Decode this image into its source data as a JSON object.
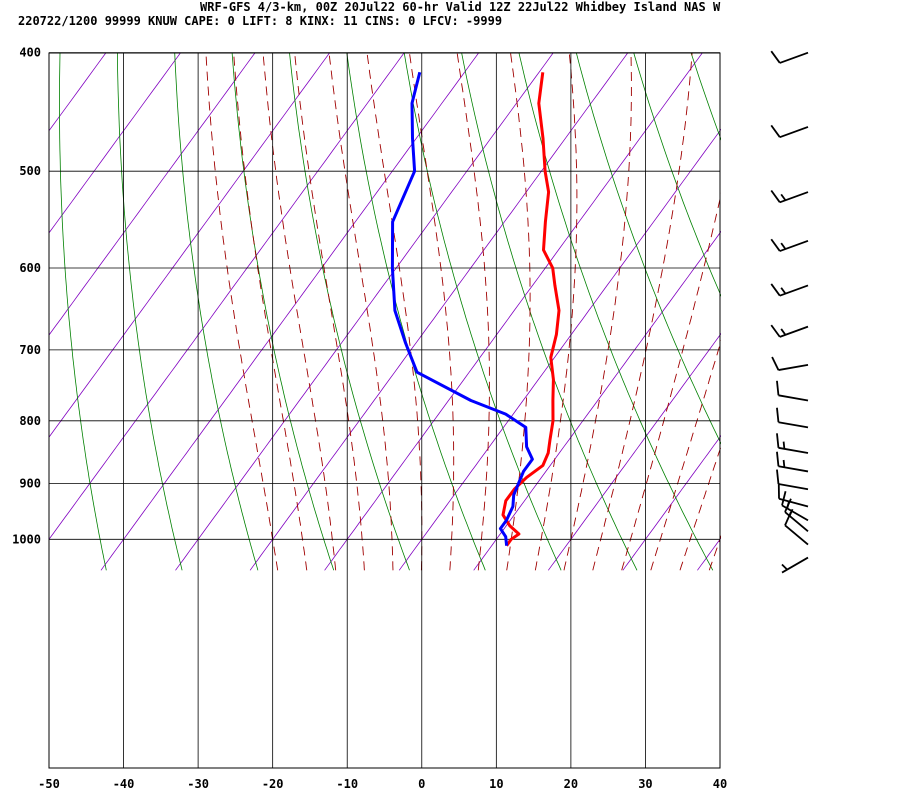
{
  "header": {
    "line1": "WRF-GFS 4/3-km, 00Z 20Jul22 60-hr Valid 12Z 22Jul22 Whidbey Island NAS W",
    "line2": "220722/1200 99999  KNUW    CAPE:     0 LIFT:     8 KINX:    11 CINS:     0 LFCV: -9999"
  },
  "colors": {
    "temperature": "#ff0000",
    "dewpoint": "#0000ff",
    "dry_adiabat": "#008000",
    "moist_adiabat": "#a00000",
    "isotherm": "#8000c0",
    "grid": "#000000",
    "wind_barb": "#000000"
  },
  "chart_data": {
    "type": "line",
    "chart_kind": "skew-T log-p sounding",
    "xlim": [
      -50,
      40
    ],
    "ylim": [
      1040,
      400
    ],
    "y_scale": "log",
    "x_ticks": [
      -50,
      -40,
      -30,
      -20,
      -10,
      0,
      10,
      20,
      30,
      40
    ],
    "y_ticks": [
      400,
      500,
      600,
      700,
      800,
      900,
      1000
    ],
    "grid": true,
    "series": [
      {
        "key": "temperature",
        "points": [
          [
            1012,
            12
          ],
          [
            1000,
            12
          ],
          [
            990,
            12.5
          ],
          [
            975,
            10.5
          ],
          [
            955,
            8.5
          ],
          [
            930,
            7.5
          ],
          [
            910,
            7.5
          ],
          [
            890,
            8
          ],
          [
            870,
            9
          ],
          [
            850,
            8.5
          ],
          [
            830,
            7.5
          ],
          [
            800,
            6
          ],
          [
            770,
            4
          ],
          [
            740,
            2
          ],
          [
            710,
            -0.5
          ],
          [
            680,
            -2
          ],
          [
            650,
            -4
          ],
          [
            620,
            -7
          ],
          [
            600,
            -9
          ],
          [
            580,
            -12
          ],
          [
            550,
            -14.5
          ],
          [
            520,
            -17
          ],
          [
            500,
            -19.5
          ],
          [
            470,
            -23
          ],
          [
            440,
            -27
          ],
          [
            415,
            -29.5
          ]
        ]
      },
      {
        "key": "dewpoint",
        "points": [
          [
            1012,
            12
          ],
          [
            995,
            11
          ],
          [
            980,
            9.5
          ],
          [
            965,
            9.5
          ],
          [
            940,
            9
          ],
          [
            920,
            8
          ],
          [
            900,
            7.5
          ],
          [
            880,
            7
          ],
          [
            860,
            7
          ],
          [
            840,
            5
          ],
          [
            810,
            3
          ],
          [
            790,
            -1
          ],
          [
            770,
            -7
          ],
          [
            730,
            -17
          ],
          [
            690,
            -21.5
          ],
          [
            650,
            -26
          ],
          [
            600,
            -30.5
          ],
          [
            550,
            -35
          ],
          [
            500,
            -37
          ],
          [
            470,
            -40.5
          ],
          [
            440,
            -44
          ],
          [
            415,
            -46
          ]
        ]
      }
    ],
    "wind_barbs": [
      {
        "p": 400,
        "dir": 250,
        "kt": 10
      },
      {
        "p": 460,
        "dir": 250,
        "kt": 10
      },
      {
        "p": 520,
        "dir": 250,
        "kt": 15
      },
      {
        "p": 570,
        "dir": 250,
        "kt": 15
      },
      {
        "p": 620,
        "dir": 250,
        "kt": 15
      },
      {
        "p": 670,
        "dir": 250,
        "kt": 15
      },
      {
        "p": 720,
        "dir": 260,
        "kt": 10
      },
      {
        "p": 770,
        "dir": 280,
        "kt": 10
      },
      {
        "p": 810,
        "dir": 280,
        "kt": 10
      },
      {
        "p": 850,
        "dir": 280,
        "kt": 15
      },
      {
        "p": 880,
        "dir": 280,
        "kt": 15
      },
      {
        "p": 910,
        "dir": 280,
        "kt": 10
      },
      {
        "p": 940,
        "dir": 285,
        "kt": 10
      },
      {
        "p": 965,
        "dir": 300,
        "kt": 15
      },
      {
        "p": 985,
        "dir": 310,
        "kt": 15
      },
      {
        "p": 1010,
        "dir": 310,
        "kt": 10
      },
      {
        "p": 1035,
        "dir": 240,
        "kt": 5
      }
    ]
  }
}
